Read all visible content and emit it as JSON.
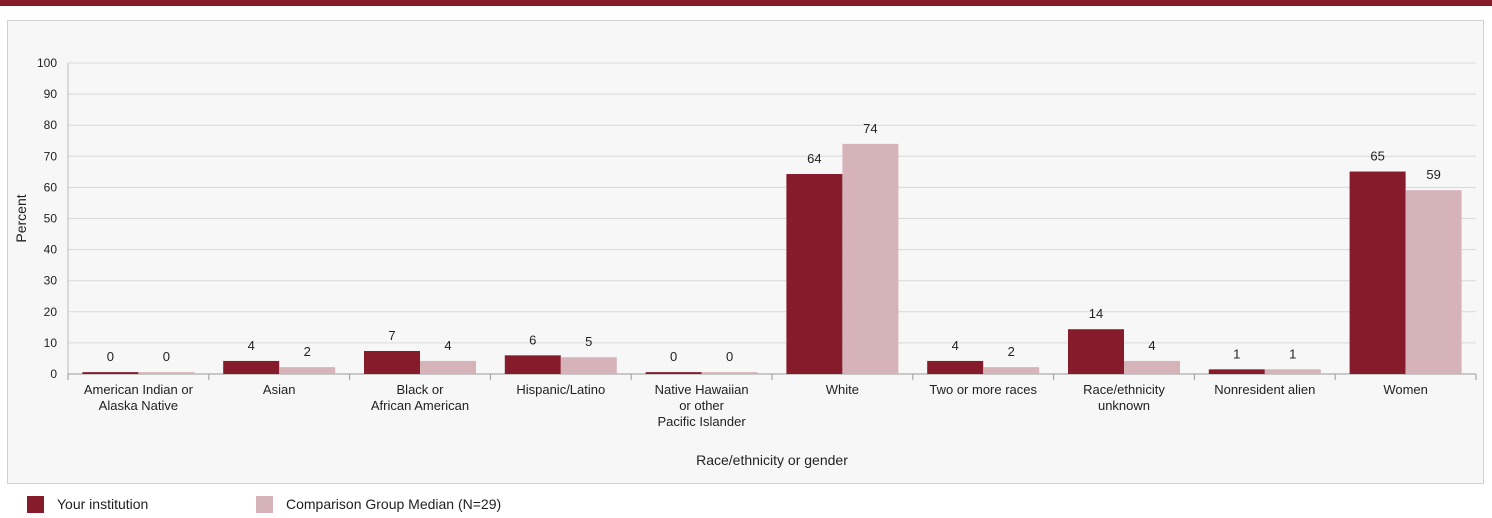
{
  "colors": {
    "accent": "#861b2c",
    "series1": "#861b2c",
    "series2": "#d6b3b8"
  },
  "legend": {
    "items": [
      {
        "label": "Your institution",
        "color": "#861b2c"
      },
      {
        "label": "Comparison Group Median (N=29)",
        "color": "#d6b3b8"
      }
    ]
  },
  "chart_data": {
    "type": "bar",
    "categories": [
      [
        "American Indian or",
        "Alaska Native"
      ],
      [
        "Asian"
      ],
      [
        "Black or",
        "African American"
      ],
      [
        "Hispanic/Latino"
      ],
      [
        "Native Hawaiian",
        "or other",
        "Pacific Islander"
      ],
      [
        "White"
      ],
      [
        "Two or more races"
      ],
      [
        "Race/ethnicity",
        "unknown"
      ],
      [
        "Nonresident alien"
      ],
      [
        "Women"
      ]
    ],
    "series": [
      {
        "name": "Your institution",
        "values": [
          0,
          4,
          7,
          6,
          0,
          64,
          4,
          14,
          1,
          65
        ]
      },
      {
        "name": "Comparison Group Median (N=29)",
        "values": [
          0,
          2,
          4,
          5,
          0,
          74,
          2,
          4,
          1,
          59
        ]
      }
    ],
    "bar_heights": [
      [
        0.6,
        4.2,
        7.4,
        6.0,
        0.6,
        64.3,
        4.2,
        14.4,
        1.5,
        65.1
      ],
      [
        0.6,
        2.2,
        4.2,
        5.4,
        0.6,
        74.0,
        2.2,
        4.2,
        1.5,
        59.1
      ]
    ],
    "xlabel": "Race/ethnicity or gender",
    "ylabel": "Percent",
    "ylim": [
      0,
      100
    ],
    "yticks": [
      0,
      10,
      20,
      30,
      40,
      50,
      60,
      70,
      80,
      90,
      100
    ],
    "grid": true,
    "legend_position": "bottom-left"
  }
}
